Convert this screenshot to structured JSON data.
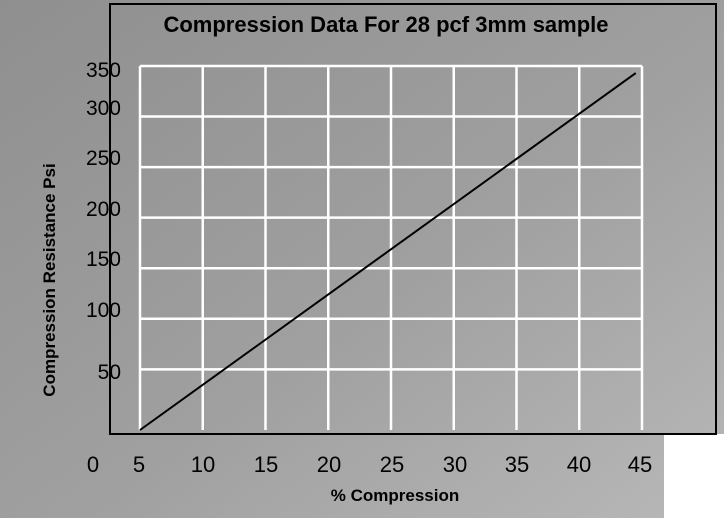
{
  "chart_data": {
    "type": "line",
    "title": "Compression Data For 28 pcf 3mm sample",
    "xlabel": "% Compression",
    "ylabel": "Compression Resistance Psi",
    "x_ticks": [
      "0",
      "5",
      "10",
      "15",
      "20",
      "25",
      "30",
      "35",
      "40",
      "45"
    ],
    "y_ticks": [
      "50",
      "100",
      "150",
      "200",
      "250",
      "300",
      "350"
    ],
    "xlim": [
      5,
      45
    ],
    "ylim": [
      0,
      360
    ],
    "grid": true,
    "line_color": "#000000",
    "grid_color": "#ffffff",
    "series": [
      {
        "x": [
          5,
          44.5
        ],
        "y": [
          0,
          353
        ]
      }
    ]
  }
}
